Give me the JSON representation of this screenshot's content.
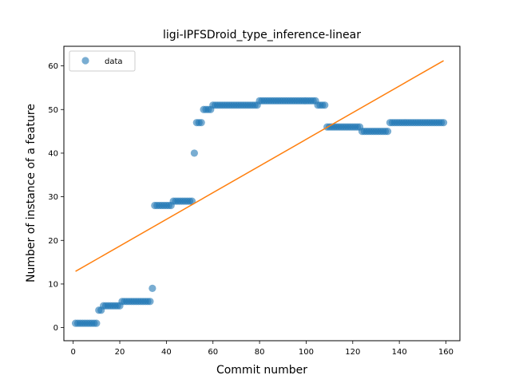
{
  "chart_data": {
    "type": "scatter",
    "title": "ligi-IPFSDroid_type_inference-linear",
    "xlabel": "Commit number",
    "ylabel": "Number of instance of a feature",
    "xlim": [
      -4,
      166
    ],
    "ylim": [
      -3.0,
      64.5
    ],
    "xticks": [
      0,
      20,
      40,
      60,
      80,
      100,
      120,
      140,
      160
    ],
    "yticks": [
      0,
      10,
      20,
      30,
      40,
      50,
      60
    ],
    "grid": false,
    "legend": {
      "placement": "top-left",
      "entries": [
        "data"
      ]
    },
    "colors": {
      "data": "#1f77b4",
      "fit": "#ff7f0e"
    },
    "series": [
      {
        "name": "data",
        "kind": "scatter",
        "points": [
          [
            1,
            1
          ],
          [
            2,
            1
          ],
          [
            3,
            1
          ],
          [
            4,
            1
          ],
          [
            5,
            1
          ],
          [
            6,
            1
          ],
          [
            7,
            1
          ],
          [
            8,
            1
          ],
          [
            9,
            1
          ],
          [
            10,
            1
          ],
          [
            11,
            4
          ],
          [
            12,
            4
          ],
          [
            13,
            5
          ],
          [
            14,
            5
          ],
          [
            15,
            5
          ],
          [
            16,
            5
          ],
          [
            17,
            5
          ],
          [
            18,
            5
          ],
          [
            19,
            5
          ],
          [
            20,
            5
          ],
          [
            21,
            6
          ],
          [
            22,
            6
          ],
          [
            23,
            6
          ],
          [
            24,
            6
          ],
          [
            25,
            6
          ],
          [
            26,
            6
          ],
          [
            27,
            6
          ],
          [
            28,
            6
          ],
          [
            29,
            6
          ],
          [
            30,
            6
          ],
          [
            31,
            6
          ],
          [
            32,
            6
          ],
          [
            33,
            6
          ],
          [
            34,
            9
          ],
          [
            35,
            28
          ],
          [
            36,
            28
          ],
          [
            37,
            28
          ],
          [
            38,
            28
          ],
          [
            39,
            28
          ],
          [
            40,
            28
          ],
          [
            41,
            28
          ],
          [
            42,
            28
          ],
          [
            43,
            29
          ],
          [
            44,
            29
          ],
          [
            45,
            29
          ],
          [
            46,
            29
          ],
          [
            47,
            29
          ],
          [
            48,
            29
          ],
          [
            49,
            29
          ],
          [
            50,
            29
          ],
          [
            51,
            29
          ],
          [
            52,
            40
          ],
          [
            53,
            47
          ],
          [
            54,
            47
          ],
          [
            55,
            47
          ],
          [
            56,
            50
          ],
          [
            57,
            50
          ],
          [
            58,
            50
          ],
          [
            59,
            50
          ],
          [
            60,
            51
          ],
          [
            61,
            51
          ],
          [
            62,
            51
          ],
          [
            63,
            51
          ],
          [
            64,
            51
          ],
          [
            65,
            51
          ],
          [
            66,
            51
          ],
          [
            67,
            51
          ],
          [
            68,
            51
          ],
          [
            69,
            51
          ],
          [
            70,
            51
          ],
          [
            71,
            51
          ],
          [
            72,
            51
          ],
          [
            73,
            51
          ],
          [
            74,
            51
          ],
          [
            75,
            51
          ],
          [
            76,
            51
          ],
          [
            77,
            51
          ],
          [
            78,
            51
          ],
          [
            79,
            51
          ],
          [
            80,
            52
          ],
          [
            81,
            52
          ],
          [
            82,
            52
          ],
          [
            83,
            52
          ],
          [
            84,
            52
          ],
          [
            85,
            52
          ],
          [
            86,
            52
          ],
          [
            87,
            52
          ],
          [
            88,
            52
          ],
          [
            89,
            52
          ],
          [
            90,
            52
          ],
          [
            91,
            52
          ],
          [
            92,
            52
          ],
          [
            93,
            52
          ],
          [
            94,
            52
          ],
          [
            95,
            52
          ],
          [
            96,
            52
          ],
          [
            97,
            52
          ],
          [
            98,
            52
          ],
          [
            99,
            52
          ],
          [
            100,
            52
          ],
          [
            101,
            52
          ],
          [
            102,
            52
          ],
          [
            103,
            52
          ],
          [
            104,
            52
          ],
          [
            105,
            51
          ],
          [
            106,
            51
          ],
          [
            107,
            51
          ],
          [
            108,
            51
          ],
          [
            109,
            46
          ],
          [
            110,
            46
          ],
          [
            111,
            46
          ],
          [
            112,
            46
          ],
          [
            113,
            46
          ],
          [
            114,
            46
          ],
          [
            115,
            46
          ],
          [
            116,
            46
          ],
          [
            117,
            46
          ],
          [
            118,
            46
          ],
          [
            119,
            46
          ],
          [
            120,
            46
          ],
          [
            121,
            46
          ],
          [
            122,
            46
          ],
          [
            123,
            46
          ],
          [
            124,
            45
          ],
          [
            125,
            45
          ],
          [
            126,
            45
          ],
          [
            127,
            45
          ],
          [
            128,
            45
          ],
          [
            129,
            45
          ],
          [
            130,
            45
          ],
          [
            131,
            45
          ],
          [
            132,
            45
          ],
          [
            133,
            45
          ],
          [
            134,
            45
          ],
          [
            135,
            45
          ],
          [
            136,
            47
          ],
          [
            137,
            47
          ],
          [
            138,
            47
          ],
          [
            139,
            47
          ],
          [
            140,
            47
          ],
          [
            141,
            47
          ],
          [
            142,
            47
          ],
          [
            143,
            47
          ],
          [
            144,
            47
          ],
          [
            145,
            47
          ],
          [
            146,
            47
          ],
          [
            147,
            47
          ],
          [
            148,
            47
          ],
          [
            149,
            47
          ],
          [
            150,
            47
          ],
          [
            151,
            47
          ],
          [
            152,
            47
          ],
          [
            153,
            47
          ],
          [
            154,
            47
          ],
          [
            155,
            47
          ],
          [
            156,
            47
          ],
          [
            157,
            47
          ],
          [
            158,
            47
          ],
          [
            159,
            47
          ]
        ]
      },
      {
        "kind": "line",
        "points": [
          [
            1,
            12.9
          ],
          [
            159,
            61.2
          ]
        ]
      }
    ]
  }
}
